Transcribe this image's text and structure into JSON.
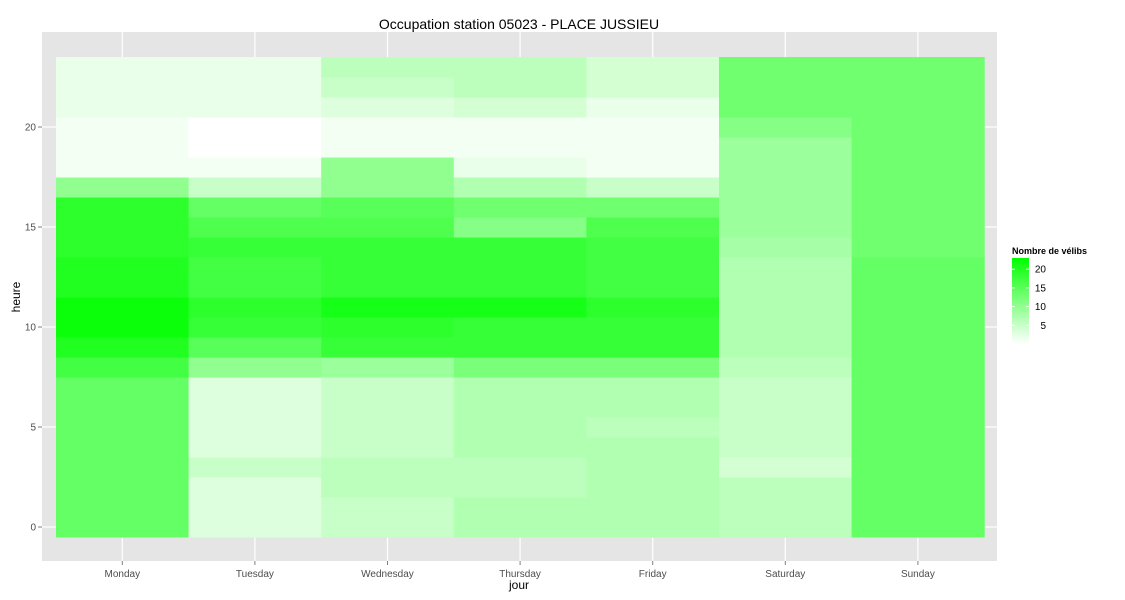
{
  "chart_data": {
    "type": "heatmap",
    "title": "Occupation station 05023 - PLACE JUSSIEU",
    "xlabel": "jour",
    "ylabel": "heure",
    "x": [
      "Monday",
      "Tuesday",
      "Wednesday",
      "Thursday",
      "Friday",
      "Saturday",
      "Sunday"
    ],
    "y": [
      0,
      1,
      2,
      3,
      4,
      5,
      6,
      7,
      8,
      9,
      10,
      11,
      12,
      13,
      14,
      15,
      16,
      17,
      18,
      19,
      20,
      21,
      22,
      23
    ],
    "ylim": [
      -0.5,
      23.5
    ],
    "y_ticks": [
      0,
      5,
      10,
      15,
      20
    ],
    "values": [
      [
        14,
        3,
        5,
        7,
        7,
        6,
        14
      ],
      [
        14,
        3,
        5,
        7,
        7,
        6,
        14
      ],
      [
        14,
        3,
        6,
        6,
        7,
        6,
        14
      ],
      [
        14,
        5,
        6,
        6,
        7,
        4,
        14
      ],
      [
        14,
        3,
        5,
        7,
        7,
        5,
        14
      ],
      [
        14,
        3,
        5,
        7,
        6,
        5,
        14
      ],
      [
        14,
        3,
        5,
        7,
        7,
        5,
        14
      ],
      [
        14,
        3,
        5,
        7,
        7,
        5,
        14
      ],
      [
        17,
        10,
        9,
        12,
        12,
        6,
        14
      ],
      [
        20,
        15,
        18,
        18,
        18,
        7,
        14
      ],
      [
        22,
        18,
        19,
        18,
        18,
        7,
        14
      ],
      [
        22,
        19,
        21,
        21,
        19,
        7,
        14
      ],
      [
        20,
        17,
        18,
        18,
        17,
        7,
        14
      ],
      [
        20,
        17,
        18,
        18,
        17,
        7,
        14
      ],
      [
        19,
        18,
        18,
        18,
        17,
        8,
        13
      ],
      [
        19,
        16,
        16,
        11,
        16,
        9,
        13
      ],
      [
        19,
        14,
        15,
        13,
        13,
        9,
        13
      ],
      [
        10,
        5,
        10,
        7,
        5,
        9,
        13
      ],
      [
        1,
        1,
        10,
        2,
        1,
        9,
        13
      ],
      [
        1,
        0,
        1,
        1,
        1,
        9,
        13
      ],
      [
        1,
        0,
        1,
        1,
        1,
        11,
        13
      ],
      [
        2,
        2,
        3,
        4,
        2,
        13,
        13
      ],
      [
        2,
        2,
        5,
        6,
        4,
        13,
        13
      ],
      [
        2,
        2,
        6,
        6,
        4,
        13,
        13
      ]
    ],
    "grid": true,
    "legend": {
      "title": "Nombre de vélibs",
      "position": "right",
      "range": [
        0,
        23
      ],
      "ticks": [
        5,
        10,
        15,
        20
      ],
      "color_low": "#ffffff",
      "color_high": "#00ff00"
    },
    "panel_background": "#e5e5e5",
    "grid_color": "#ffffff"
  }
}
